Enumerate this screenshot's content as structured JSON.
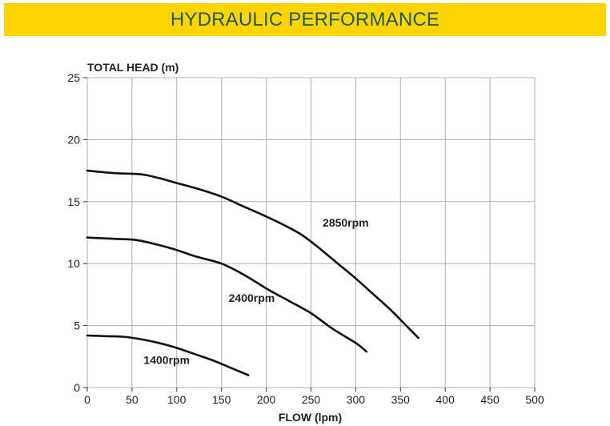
{
  "header": {
    "title": "HYDRAULIC PERFORMANCE"
  },
  "colors": {
    "banner": "#ffd500",
    "title": "#1d5a6b",
    "grid": "#b0b0b0",
    "curve": "#111111"
  },
  "chart_data": {
    "type": "line",
    "title": "",
    "xlabel": "FLOW (lpm)",
    "ylabel": "TOTAL HEAD (m)",
    "xlim": [
      0,
      500
    ],
    "ylim": [
      0,
      25
    ],
    "xticks": [
      0,
      50,
      100,
      150,
      200,
      250,
      300,
      350,
      400,
      450,
      500
    ],
    "yticks": [
      0,
      5,
      10,
      15,
      20,
      25
    ],
    "grid": true,
    "series": [
      {
        "name": "2850rpm",
        "points": [
          [
            0,
            17.5
          ],
          [
            30,
            17.3
          ],
          [
            60,
            17.2
          ],
          [
            80,
            16.9
          ],
          [
            100,
            16.5
          ],
          [
            125,
            16.0
          ],
          [
            150,
            15.4
          ],
          [
            175,
            14.6
          ],
          [
            200,
            13.8
          ],
          [
            220,
            13.1
          ],
          [
            240,
            12.3
          ],
          [
            260,
            11.2
          ],
          [
            280,
            10.0
          ],
          [
            300,
            8.8
          ],
          [
            320,
            7.5
          ],
          [
            340,
            6.2
          ],
          [
            355,
            5.1
          ],
          [
            370,
            4.0
          ]
        ]
      },
      {
        "name": "2400rpm",
        "points": [
          [
            0,
            12.1
          ],
          [
            30,
            12.0
          ],
          [
            55,
            11.9
          ],
          [
            80,
            11.5
          ],
          [
            100,
            11.1
          ],
          [
            120,
            10.6
          ],
          [
            150,
            10.0
          ],
          [
            175,
            9.1
          ],
          [
            200,
            8.0
          ],
          [
            225,
            7.0
          ],
          [
            250,
            6.0
          ],
          [
            275,
            4.7
          ],
          [
            300,
            3.6
          ],
          [
            312,
            2.9
          ]
        ]
      },
      {
        "name": "1400rpm",
        "points": [
          [
            0,
            4.2
          ],
          [
            20,
            4.15
          ],
          [
            40,
            4.1
          ],
          [
            60,
            3.9
          ],
          [
            80,
            3.6
          ],
          [
            100,
            3.2
          ],
          [
            120,
            2.7
          ],
          [
            140,
            2.2
          ],
          [
            160,
            1.6
          ],
          [
            180,
            1.0
          ]
        ]
      }
    ]
  }
}
